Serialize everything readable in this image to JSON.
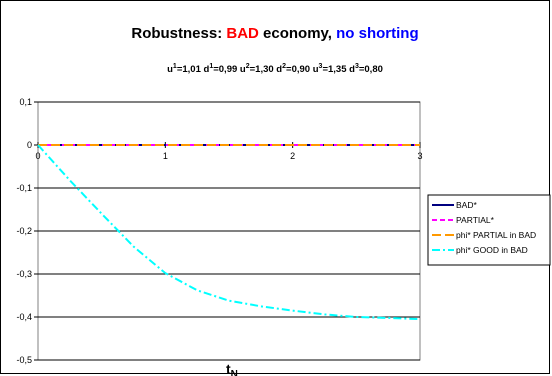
{
  "chart_data": {
    "type": "line",
    "title": {
      "parts": [
        {
          "text": "Robustness: ",
          "color": "#000000"
        },
        {
          "text": "BAD",
          "color": "#ff0000"
        },
        {
          "text": " economy, ",
          "color": "#000000"
        },
        {
          "text": "no shorting",
          "color": "#0000ff"
        }
      ]
    },
    "subtitle": {
      "items": [
        {
          "base": "u",
          "sup": "1",
          "value": "=1,01"
        },
        {
          "base": "d",
          "sup": "1",
          "value": "=0,99"
        },
        {
          "base": "u",
          "sup": "2",
          "value": "=1,30"
        },
        {
          "base": "d",
          "sup": "2",
          "value": "=0,90"
        },
        {
          "base": "u",
          "sup": "3",
          "value": "=1,35"
        },
        {
          "base": "d",
          "sup": "3",
          "value": "=0,80"
        }
      ]
    },
    "xlabel": "t",
    "xlabel_sub": "N",
    "xlim": [
      0,
      3
    ],
    "ylim": [
      -0.5,
      0.1
    ],
    "x_ticks": [
      "0",
      "1",
      "2",
      "3"
    ],
    "y_ticks": [
      "0,1",
      "0",
      "-0,1",
      "-0,2",
      "-0,3",
      "-0,4",
      "-0,5"
    ],
    "y_tick_values": [
      0.1,
      0,
      -0.1,
      -0.2,
      -0.3,
      -0.4,
      -0.5
    ],
    "grid": "horizontal",
    "legend_position": "right",
    "series": [
      {
        "name": "BAD*",
        "color": "#000080",
        "dash": "solid",
        "x": [
          0,
          1,
          2,
          3
        ],
        "y": [
          0,
          0,
          0,
          0
        ]
      },
      {
        "name": "PARTIAL*",
        "color": "#ff00ff",
        "dash": "dash",
        "x": [
          0,
          1,
          2,
          3
        ],
        "y": [
          0,
          0,
          0,
          0
        ]
      },
      {
        "name": "phi* PARTIAL in BAD",
        "color": "#ff9900",
        "dash": "longdash",
        "x": [
          0,
          1,
          2,
          3
        ],
        "y": [
          0,
          0,
          0,
          0
        ]
      },
      {
        "name": "phi* GOOD in BAD",
        "color": "#00ffff",
        "dash": "dashdot",
        "x": [
          0,
          0.25,
          0.5,
          0.75,
          1.0,
          1.25,
          1.5,
          1.75,
          2.0,
          2.25,
          2.5,
          2.75,
          3.0
        ],
        "y": [
          0,
          -0.082,
          -0.16,
          -0.236,
          -0.298,
          -0.338,
          -0.362,
          -0.375,
          -0.385,
          -0.394,
          -0.4,
          -0.402,
          -0.405
        ]
      }
    ]
  }
}
